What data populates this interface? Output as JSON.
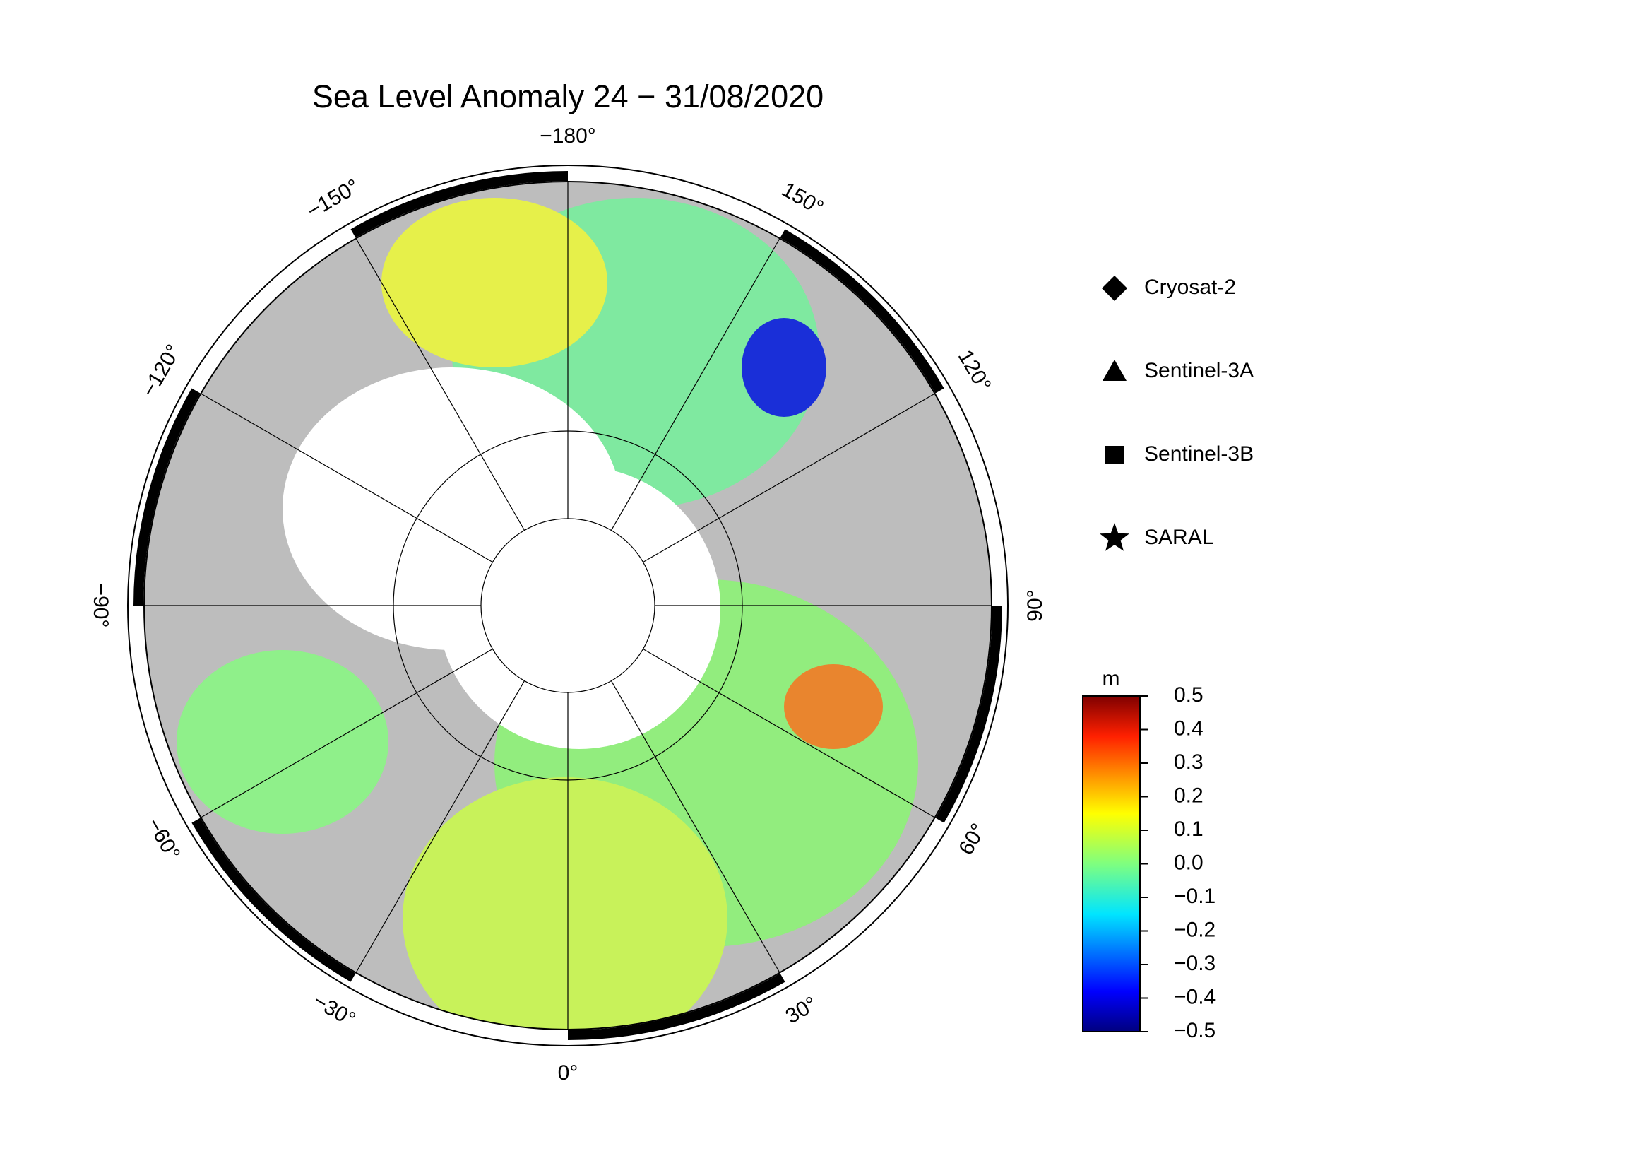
{
  "title": "Sea Level Anomaly 24 − 31/08/2020",
  "map": {
    "longitude_labels": [
      {
        "value": -180,
        "label": "−180°"
      },
      {
        "value": -150,
        "label": "−150°"
      },
      {
        "value": -120,
        "label": "−120°"
      },
      {
        "value": -90,
        "label": "−90°"
      },
      {
        "value": -60,
        "label": "−60°"
      },
      {
        "value": -30,
        "label": "−30°"
      },
      {
        "value": 0,
        "label": "0°"
      },
      {
        "value": 30,
        "label": "30°"
      },
      {
        "value": 60,
        "label": "60°"
      },
      {
        "value": 90,
        "label": "90°"
      },
      {
        "value": 120,
        "label": "120°"
      },
      {
        "value": 150,
        "label": "150°"
      }
    ]
  },
  "legend": [
    {
      "marker": "diamond",
      "label": "Cryosat-2"
    },
    {
      "marker": "triangle",
      "label": "Sentinel-3A"
    },
    {
      "marker": "square",
      "label": "Sentinel-3B"
    },
    {
      "marker": "star",
      "label": "SARAL"
    }
  ],
  "colorbar": {
    "unit": "m",
    "range": [
      -0.5,
      0.5
    ],
    "ticks": [
      0.5,
      0.4,
      0.3,
      0.2,
      0.1,
      {
        "value": 0,
        "label": "0.0"
      },
      {
        "value": -0.1,
        "label": "−0.1"
      },
      {
        "value": -0.2,
        "label": "−0.2"
      },
      {
        "value": -0.3,
        "label": "−0.3"
      },
      {
        "value": -0.4,
        "label": "−0.4"
      },
      {
        "value": -0.5,
        "label": "−0.5"
      }
    ]
  }
}
